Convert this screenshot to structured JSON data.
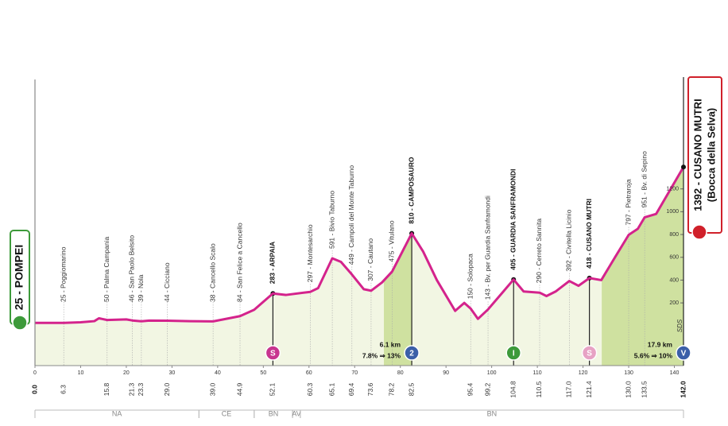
{
  "chart_data": {
    "type": "area",
    "color": "#d4238c",
    "fill": "#f2f6e3",
    "climb_color": "#cfe1a0",
    "x": [
      0,
      6.3,
      10,
      13,
      14,
      15.8,
      20,
      21.3,
      23.3,
      25,
      29,
      34,
      39,
      44.9,
      48,
      52.1,
      55,
      60.3,
      62,
      65.1,
      67,
      69.4,
      72,
      73.6,
      76,
      78.2,
      82.5,
      85,
      88,
      92,
      94,
      95.4,
      97,
      99.2,
      104.8,
      107,
      110.5,
      112,
      114,
      117,
      119,
      121.4,
      124,
      127,
      130,
      132,
      133.5,
      136,
      142
    ],
    "values": [
      25,
      25,
      30,
      40,
      65,
      50,
      55,
      46,
      39,
      45,
      44,
      40,
      38,
      84,
      140,
      283,
      270,
      297,
      330,
      591,
      560,
      449,
      320,
      307,
      380,
      475,
      810,
      650,
      400,
      130,
      200,
      150,
      60,
      143,
      405,
      300,
      290,
      260,
      300,
      392,
      350,
      418,
      400,
      600,
      797,
      850,
      951,
      980,
      1392
    ],
    "xlim": [
      0,
      142
    ],
    "ylim": [
      -350,
      1400
    ],
    "xticks": [
      0,
      10,
      20,
      30,
      40,
      50,
      60,
      70,
      80,
      90,
      100,
      110,
      120,
      130,
      140
    ],
    "yticks": [
      200,
      400,
      600,
      800,
      1000,
      1200
    ],
    "sds_label": "SDS",
    "start": {
      "km": {
        "value": 0,
        "label": "0.0"
      },
      "name": "25 - POMPEI"
    },
    "finish": {
      "km": {
        "value": 142,
        "label": "142.0"
      },
      "name": "1392 - CUSANO MUTRI",
      "subname": "(Bocca della Selva)"
    },
    "waypoints": [
      {
        "km": {
          "value": 6.3,
          "label": "6.3"
        },
        "name": "25 - Poggiomarino",
        "bold": false
      },
      {
        "km": {
          "value": 15.8,
          "label": "15.8"
        },
        "name": "50 - Palma Campania",
        "bold": false
      },
      {
        "km": {
          "value": 21.3,
          "label": "21.3"
        },
        "name": "46 - San Paolo Belsito",
        "bold": false
      },
      {
        "km": {
          "value": 23.3,
          "label": "23.3"
        },
        "name": "39 - Nola",
        "bold": false
      },
      {
        "km": {
          "value": 29.0,
          "label": "29.0"
        },
        "name": "44 - Cicciano",
        "bold": false
      },
      {
        "km": {
          "value": 39.0,
          "label": "39.0"
        },
        "name": "38 - Cancello Scalo",
        "bold": false
      },
      {
        "km": {
          "value": 44.9,
          "label": "44.9"
        },
        "name": "84 - San Felice a Cancello",
        "bold": false
      },
      {
        "km": {
          "value": 52.1,
          "label": "52.1"
        },
        "name": "283 - ARPAIA",
        "bold": true
      },
      {
        "km": {
          "value": 60.3,
          "label": "60.3"
        },
        "name": "297 - Montesarchio",
        "bold": false
      },
      {
        "km": {
          "value": 65.1,
          "label": "65.1"
        },
        "name": "591 - Bivio Taburno",
        "bold": false
      },
      {
        "km": {
          "value": 69.4,
          "label": "69.4"
        },
        "name": "449 - Campoli del Monte Taburno",
        "bold": false
      },
      {
        "km": {
          "value": 73.6,
          "label": "73.6"
        },
        "name": "307 - Cautano",
        "bold": false
      },
      {
        "km": {
          "value": 78.2,
          "label": "78.2"
        },
        "name": "475 - Vitulano",
        "bold": false
      },
      {
        "km": {
          "value": 82.5,
          "label": "82.5"
        },
        "name": "810 - CAMPOSAURO",
        "bold": true
      },
      {
        "km": {
          "value": 95.4,
          "label": "95.4"
        },
        "name": "150 - Solopaca",
        "bold": false
      },
      {
        "km": {
          "value": 99.2,
          "label": "99.2"
        },
        "name": "143 - Bv. per Guardia Sanframondi",
        "bold": false
      },
      {
        "km": {
          "value": 104.8,
          "label": "104.8"
        },
        "name": "405 - GUARDIA SANFRAMONDI",
        "bold": true
      },
      {
        "km": {
          "value": 110.5,
          "label": "110.5"
        },
        "name": "290 - Cerreto Sannita",
        "bold": false
      },
      {
        "km": {
          "value": 117.0,
          "label": "117.0"
        },
        "name": "392 - Civitella Licinio",
        "bold": false
      },
      {
        "km": {
          "value": 121.4,
          "label": "121.4"
        },
        "name": "418 - CUSANO MUTRI",
        "bold": true
      },
      {
        "km": {
          "value": 130.0,
          "label": "130.0"
        },
        "name": "797 - Pietraroja",
        "bold": false
      },
      {
        "km": {
          "value": 133.5,
          "label": "133.5"
        },
        "name": "951 - Bv. di Sepino",
        "bold": false
      }
    ],
    "climbs": [
      {
        "length": {
          "value": 6.1,
          "label": "6.1 km"
        },
        "end": 82.5,
        "gradient": "7.8% ⇒ 13%"
      },
      {
        "length": {
          "value": 17.9,
          "label": "17.9 km"
        },
        "end": 142,
        "gradient": "5.6% ⇒ 10%"
      }
    ],
    "icons": [
      {
        "km": 52.1,
        "symbol": "S",
        "color": "#c8358f"
      },
      {
        "km": 82.5,
        "symbol": "2",
        "color": "#3b5fa8"
      },
      {
        "km": 104.8,
        "symbol": "I",
        "color": "#3d9a3a"
      },
      {
        "km": 121.4,
        "symbol": "S",
        "color": "#e7a2c4"
      },
      {
        "km": 142,
        "symbol": "V",
        "color": "#3b5fa8"
      }
    ],
    "regions": [
      {
        "name": "NA",
        "from": 0,
        "to": 35.9
      },
      {
        "name": "CE",
        "from": 35.9,
        "to": 48
      },
      {
        "name": "BN",
        "from": 48,
        "to": 56.4
      },
      {
        "name": "AV",
        "from": 56.4,
        "to": 58.1
      },
      {
        "name": "BN",
        "from": 58.1,
        "to": 142
      }
    ]
  }
}
